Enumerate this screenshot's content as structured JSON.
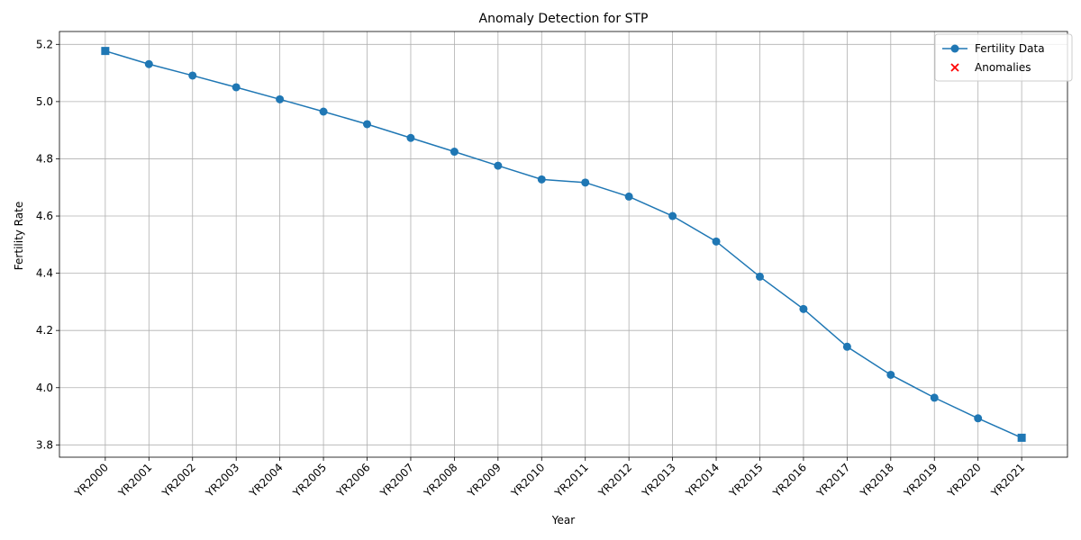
{
  "chart_data": {
    "type": "line",
    "title": "Anomaly Detection for STP",
    "xlabel": "Year",
    "ylabel": "Fertility Rate",
    "categories": [
      "YR2000",
      "YR2001",
      "YR2002",
      "YR2003",
      "YR2004",
      "YR2005",
      "YR2006",
      "YR2007",
      "YR2008",
      "YR2009",
      "YR2010",
      "YR2011",
      "YR2012",
      "YR2013",
      "YR2014",
      "YR2015",
      "YR2016",
      "YR2017",
      "YR2018",
      "YR2019",
      "YR2020",
      "YR2021"
    ],
    "series": [
      {
        "name": "Fertility Data",
        "color": "#1f77b4",
        "values": [
          5.177,
          5.131,
          5.091,
          5.05,
          5.008,
          4.965,
          4.921,
          4.873,
          4.825,
          4.776,
          4.728,
          4.717,
          4.668,
          4.6,
          4.511,
          4.388,
          4.275,
          4.143,
          4.045,
          3.965,
          3.893,
          3.825
        ]
      },
      {
        "name": "Anomalies",
        "color": "#ff0000",
        "marker": "x",
        "points": []
      }
    ],
    "yticks": [
      3.8,
      4.0,
      4.2,
      4.4,
      4.6,
      4.8,
      5.0,
      5.2
    ],
    "ylim": [
      3.757,
      5.245
    ],
    "grid": true,
    "legend": "top-right"
  }
}
